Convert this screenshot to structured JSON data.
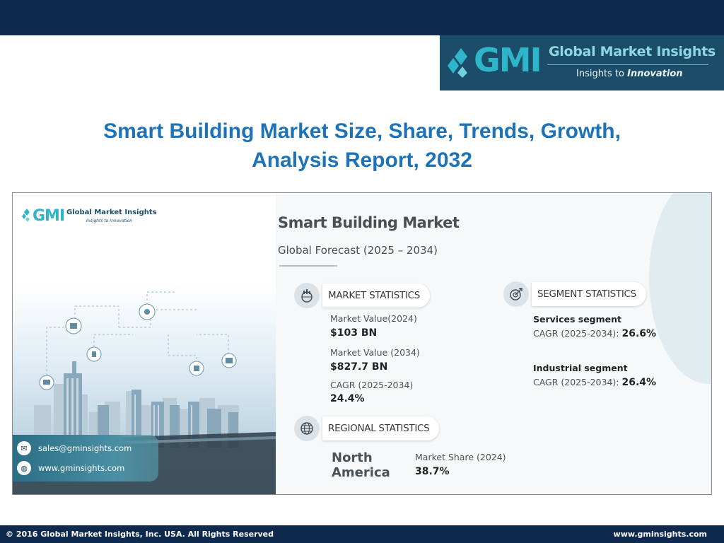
{
  "header": {
    "logo": {
      "mark": "GMI",
      "name": "Global Market Insights",
      "tagline_prefix": "Insights to ",
      "tagline_emphasis": "Innovation"
    }
  },
  "title": {
    "line1": "Smart Building Market Size, Share, Trends, Growth,",
    "line2": "Analysis Report, 2032"
  },
  "infographic": {
    "logo": {
      "mark": "GMI",
      "name": "Global Market Insights",
      "tagline": "Insights to Innovation"
    },
    "heading": "Smart Building Market",
    "subheading": "Global Forecast (2025 – 2034)",
    "market_statistics": {
      "label": "MARKET STATISTICS",
      "value_2024_label": "Market Value(2024)",
      "value_2024": "$103 BN",
      "value_2034_label": "Market Value (2034)",
      "value_2034": "$827.7 BN",
      "cagr_label": "CAGR (2025-2034)",
      "cagr": "24.4%"
    },
    "segment_statistics": {
      "label": "SEGMENT STATISTICS",
      "segments": [
        {
          "name": "Services segment",
          "cagr_label": "CAGR (2025-2034): ",
          "cagr": "26.6%"
        },
        {
          "name": "Industrial segment",
          "cagr_label": "CAGR (2025-2034): ",
          "cagr": "26.4%"
        }
      ]
    },
    "regional_statistics": {
      "label": "REGIONAL STATISTICS",
      "region_line1": "North",
      "region_line2": "America",
      "share_label": "Market Share (2024)",
      "share": "38.7%"
    },
    "contact": {
      "email": "sales@gminsights.com",
      "website": "www.gminsights.com"
    }
  },
  "footer": {
    "copyright": "© 2016 Global Market Insights, Inc. USA.  All Rights Reserved",
    "url": "www.gminsights.com"
  },
  "colors": {
    "navy": "#0e2a4f",
    "logo_teal": "#1b4d68",
    "title_blue": "#1d72b8",
    "accent_cyan": "#2fb5c9"
  }
}
